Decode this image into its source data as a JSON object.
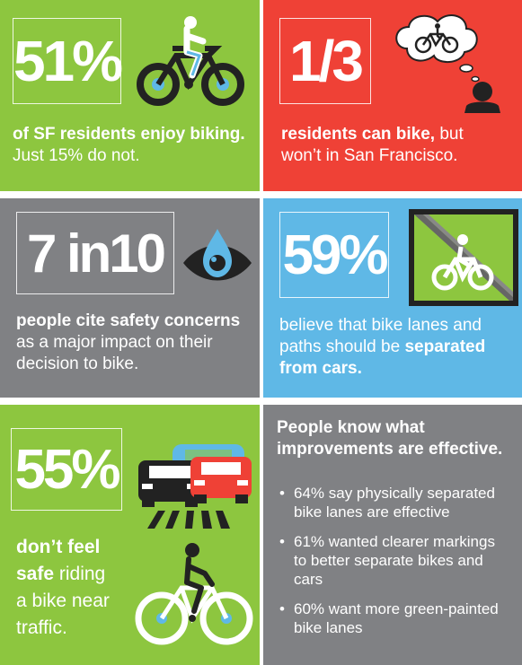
{
  "colors": {
    "green": "#8dc63f",
    "red": "#ef4136",
    "gray": "#808184",
    "blue": "#5fb8e6",
    "dark": "#222222"
  },
  "panel1": {
    "stat": "51%",
    "bold": "of SF residents enjoy biking.",
    "rest": "Just 15% do not."
  },
  "panel2": {
    "stat": "1/3",
    "bold": "residents can bike,",
    "rest_a": " but",
    "rest_b": "won’t in San Francisco."
  },
  "panel3": {
    "stat": "7 in10",
    "bold": "people cite safety concerns",
    "rest_a": "as a major impact on their",
    "rest_b": "decision to bike."
  },
  "panel4": {
    "stat": "59%",
    "line1": "believe that bike lanes and",
    "line2a": "paths should be ",
    "line2b": "separated",
    "line3": "from cars."
  },
  "panel5": {
    "stat": "55%",
    "bold1": "don’t feel",
    "bold2": "safe",
    "rest2": " riding",
    "line3": "a bike near",
    "line4": "traffic."
  },
  "panel6": {
    "title1": "People know what",
    "title2": "improvements are effective.",
    "items": [
      {
        "l1": "64% say physically separated",
        "l2": "bike lanes are effective"
      },
      {
        "l1": "61% wanted clearer markings",
        "l2": "to better separate bikes and",
        "l3": "cars"
      },
      {
        "l1": "60% want more green-painted",
        "l2": "bike lanes"
      }
    ]
  }
}
